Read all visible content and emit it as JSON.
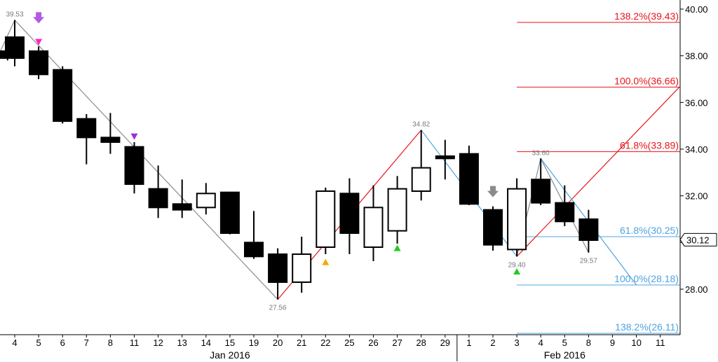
{
  "chart_data": {
    "type": "candlestick",
    "title": "",
    "xlabel": "",
    "ylabel": "",
    "ylim": [
      26.0,
      40.2
    ],
    "y_ticks": [
      "40.00",
      "38.00",
      "36.00",
      "34.00",
      "32.00",
      "30.00",
      "28.00"
    ],
    "last_price": "30.12",
    "x_labels": [
      "4",
      "5",
      "6",
      "7",
      "8",
      "11",
      "12",
      "13",
      "14",
      "15",
      "19",
      "20",
      "21",
      "22",
      "25",
      "26",
      "27",
      "28",
      "29",
      "1",
      "2",
      "3",
      "4",
      "5",
      "8",
      "9",
      "10",
      "11"
    ],
    "month_labels": [
      {
        "text": "Jan 2016",
        "slot": 9
      },
      {
        "text": "Feb 2016",
        "slot": 23
      }
    ],
    "candles": [
      {
        "slot": -0.3,
        "open": 38.2,
        "high": 38.4,
        "low": 37.8,
        "close": 37.9
      },
      {
        "slot": 0,
        "open": 38.8,
        "high": 39.53,
        "low": 37.55,
        "close": 37.9
      },
      {
        "slot": 1,
        "open": 38.2,
        "high": 38.4,
        "low": 37.0,
        "close": 37.2
      },
      {
        "slot": 2,
        "open": 37.4,
        "high": 37.55,
        "low": 35.1,
        "close": 35.2
      },
      {
        "slot": 3,
        "open": 35.3,
        "high": 35.5,
        "low": 33.35,
        "close": 34.5
      },
      {
        "slot": 4,
        "open": 34.5,
        "high": 35.55,
        "low": 33.8,
        "close": 34.3
      },
      {
        "slot": 5,
        "open": 34.1,
        "high": 34.3,
        "low": 32.1,
        "close": 32.5
      },
      {
        "slot": 6,
        "open": 32.3,
        "high": 33.3,
        "low": 31.05,
        "close": 31.5
      },
      {
        "slot": 7,
        "open": 31.65,
        "high": 32.7,
        "low": 31.05,
        "close": 31.4
      },
      {
        "slot": 8,
        "open": 31.5,
        "high": 32.55,
        "low": 31.2,
        "close": 32.1
      },
      {
        "slot": 9,
        "open": 32.15,
        "high": 32.15,
        "low": 30.35,
        "close": 30.4
      },
      {
        "slot": 10,
        "open": 30.0,
        "high": 31.35,
        "low": 29.3,
        "close": 29.4
      },
      {
        "slot": 11,
        "open": 29.5,
        "high": 29.75,
        "low": 27.56,
        "close": 28.3
      },
      {
        "slot": 12,
        "open": 28.3,
        "high": 30.25,
        "low": 27.85,
        "close": 29.5
      },
      {
        "slot": 13,
        "open": 29.8,
        "high": 32.35,
        "low": 29.5,
        "close": 32.2
      },
      {
        "slot": 14,
        "open": 32.1,
        "high": 32.75,
        "low": 29.5,
        "close": 30.4
      },
      {
        "slot": 15,
        "open": 29.8,
        "high": 32.45,
        "low": 29.2,
        "close": 31.5
      },
      {
        "slot": 16,
        "open": 30.5,
        "high": 32.85,
        "low": 29.95,
        "close": 32.3
      },
      {
        "slot": 17,
        "open": 32.2,
        "high": 34.82,
        "low": 31.8,
        "close": 33.2
      },
      {
        "slot": 18,
        "open": 33.7,
        "high": 34.4,
        "low": 32.7,
        "close": 33.6
      },
      {
        "slot": 19,
        "open": 33.8,
        "high": 34.15,
        "low": 31.6,
        "close": 31.65
      },
      {
        "slot": 20,
        "open": 31.4,
        "high": 31.55,
        "low": 29.65,
        "close": 29.9
      },
      {
        "slot": 21,
        "open": 29.7,
        "high": 32.75,
        "low": 29.4,
        "close": 32.3
      },
      {
        "slot": 22,
        "open": 32.7,
        "high": 33.6,
        "low": 31.6,
        "close": 31.7
      },
      {
        "slot": 23,
        "open": 31.7,
        "high": 32.45,
        "low": 30.7,
        "close": 30.9
      },
      {
        "slot": 24,
        "open": 31.0,
        "high": 31.4,
        "low": 29.57,
        "close": 30.1
      }
    ],
    "swing_labels": [
      {
        "text": "39.53",
        "slot": 0,
        "value": 39.53,
        "pos": "above"
      },
      {
        "text": "27.56",
        "slot": 11,
        "value": 27.56,
        "pos": "below"
      },
      {
        "text": "34.82",
        "slot": 17,
        "value": 34.82,
        "pos": "above"
      },
      {
        "text": "29.40",
        "slot": 21,
        "value": 29.4,
        "pos": "below"
      },
      {
        "text": "33.60",
        "slot": 22,
        "value": 33.6,
        "pos": "above"
      },
      {
        "text": "29.57",
        "slot": 24,
        "value": 29.57,
        "pos": "below"
      }
    ],
    "fib_levels": [
      {
        "text": "138.2%(39.43)",
        "value": 39.43,
        "color": "#e8141a",
        "from_slot": 21.0
      },
      {
        "text": "100.0%(36.66)",
        "value": 36.66,
        "color": "#e8141a",
        "from_slot": 21.0
      },
      {
        "text": "61.8%(33.89)",
        "value": 33.89,
        "color": "#e8141a",
        "from_slot": 21.0
      },
      {
        "text": "61.8%(30.25)",
        "value": 30.25,
        "color": "#4fa3e0",
        "from_slot": 21.0
      },
      {
        "text": "100.0%(28.18)",
        "value": 28.18,
        "color": "#4fa3e0",
        "from_slot": 21.0
      },
      {
        "text": "138.2%(26.11)",
        "value": 26.11,
        "color": "#4fa3e0",
        "from_slot": 21.0
      }
    ],
    "trend_lines": [
      {
        "color": "#8c8c8c",
        "points": [
          [
            -0.6,
            38.2
          ],
          [
            0,
            39.53
          ],
          [
            11,
            27.56
          ]
        ]
      },
      {
        "color": "#e8141a",
        "points": [
          [
            11,
            27.56
          ],
          [
            17,
            34.82
          ]
        ]
      },
      {
        "color": "#4fa3e0",
        "points": [
          [
            17,
            34.82
          ],
          [
            21,
            29.4
          ]
        ]
      },
      {
        "color": "#e8141a",
        "points": [
          [
            21,
            29.4
          ],
          [
            27.8,
            36.66
          ]
        ]
      },
      {
        "color": "#8c8c8c",
        "points": [
          [
            21,
            29.4
          ],
          [
            22,
            33.6
          ],
          [
            24,
            29.57
          ]
        ]
      },
      {
        "color": "#4fa3e0",
        "points": [
          [
            22,
            33.6
          ],
          [
            26.0,
            28.18
          ]
        ]
      }
    ],
    "markers": [
      {
        "type": "arrow-down",
        "slot": 1,
        "value": 39.6,
        "color": "#b05be8"
      },
      {
        "type": "triangle-down",
        "slot": 1,
        "value": 38.6,
        "color": "#ff22cc"
      },
      {
        "type": "triangle-down",
        "slot": 5,
        "value": 34.55,
        "color": "#9b30d9"
      },
      {
        "type": "triangle-up",
        "slot": 13,
        "value": 29.15,
        "color": "#f5a800"
      },
      {
        "type": "triangle-up",
        "slot": 16,
        "value": 29.75,
        "color": "#22cc22"
      },
      {
        "type": "arrow-down",
        "slot": 20,
        "value": 32.15,
        "color": "#8a8a8a"
      },
      {
        "type": "triangle-up",
        "slot": 21,
        "value": 28.75,
        "color": "#22cc22"
      }
    ]
  }
}
